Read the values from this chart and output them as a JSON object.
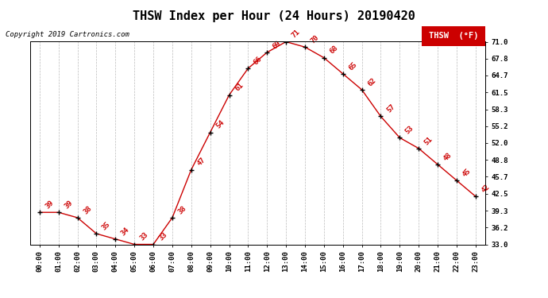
{
  "title": "THSW Index per Hour (24 Hours) 20190420",
  "copyright": "Copyright 2019 Cartronics.com",
  "legend_label": "THSW  (°F)",
  "hours": [
    0,
    1,
    2,
    3,
    4,
    5,
    6,
    7,
    8,
    9,
    10,
    11,
    12,
    13,
    14,
    15,
    16,
    17,
    18,
    19,
    20,
    21,
    22,
    23
  ],
  "values": [
    39,
    39,
    38,
    35,
    34,
    33,
    33,
    38,
    47,
    54,
    61,
    66,
    69,
    71,
    70,
    68,
    65,
    62,
    57,
    53,
    51,
    48,
    45,
    42
  ],
  "xlabels": [
    "00:00",
    "01:00",
    "02:00",
    "03:00",
    "04:00",
    "05:00",
    "06:00",
    "07:00",
    "08:00",
    "09:00",
    "10:00",
    "11:00",
    "12:00",
    "13:00",
    "14:00",
    "15:00",
    "16:00",
    "17:00",
    "18:00",
    "19:00",
    "20:00",
    "21:00",
    "22:00",
    "23:00"
  ],
  "yticks": [
    33.0,
    36.2,
    39.3,
    42.5,
    45.7,
    48.8,
    52.0,
    55.2,
    58.3,
    61.5,
    64.7,
    67.8,
    71.0
  ],
  "ymin": 33.0,
  "ymax": 71.0,
  "line_color": "#cc0000",
  "marker_color": "#000000",
  "bg_color": "#ffffff",
  "grid_color": "#bbbbbb",
  "title_fontsize": 11,
  "label_fontsize": 6.5,
  "value_fontsize": 6.5,
  "copyright_fontsize": 6.5,
  "legend_fontsize": 7.5
}
